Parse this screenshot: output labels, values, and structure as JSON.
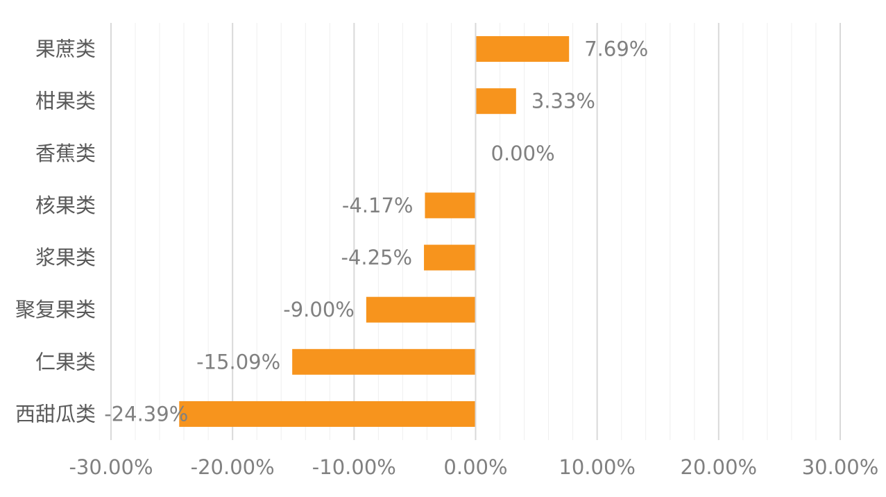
{
  "chart_data": {
    "type": "bar",
    "orientation": "horizontal",
    "categories": [
      "果蔗类",
      "柑果类",
      "香蕉类",
      "核果类",
      "浆果类",
      "聚复果类",
      "仁果类",
      "西甜瓜类"
    ],
    "values": [
      7.69,
      3.33,
      0.0,
      -4.17,
      -4.25,
      -9.0,
      -15.09,
      -24.39
    ],
    "value_labels": [
      "7.69%",
      "3.33%",
      "0.00%",
      "-4.17%",
      "-4.25%",
      "-9.00%",
      "-15.09%",
      "-24.39%"
    ],
    "x_ticks": [
      -30,
      -20,
      -10,
      0,
      10,
      20,
      30
    ],
    "x_tick_labels": [
      "-30.00%",
      "-20.00%",
      "-10.00%",
      "0.00%",
      "10.00%",
      "20.00%",
      "30.00%"
    ],
    "xlim": [
      -30,
      30
    ],
    "minor_step": 2,
    "grid": true,
    "legend": "none",
    "title": "",
    "xlabel": "",
    "ylabel": "",
    "colors": {
      "bar": "#F7941D",
      "text": "#808080",
      "category_text": "#595959",
      "major_grid": "#D9D9D9",
      "minor_grid": "#EFEFEF"
    }
  }
}
